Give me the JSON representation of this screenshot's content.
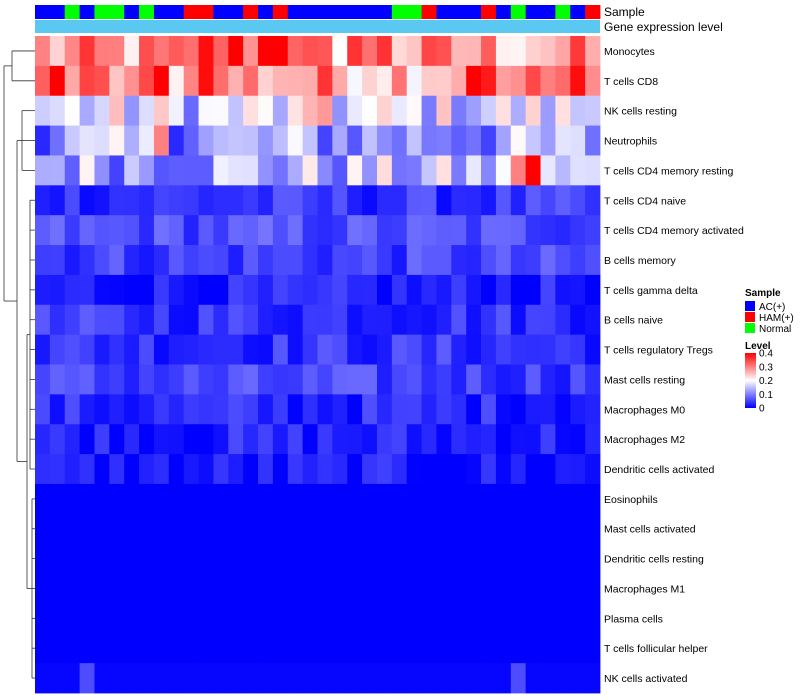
{
  "chart_data": {
    "type": "heatmap",
    "title": "",
    "annotation_labels": {
      "sample": "Sample",
      "gene_expression": "Gene expression level"
    },
    "row_labels": [
      "Monocytes",
      "T cells CD8",
      "NK cells resting",
      "Neutrophils",
      "T cells CD4 memory resting",
      "T cells CD4 naive",
      "T cells CD4 memory activated",
      "B cells memory",
      "T cells gamma delta",
      "B cells naive",
      "T cells regulatory  Tregs",
      "Mast cells resting",
      "Macrophages M0",
      "Macrophages M2",
      "Dendritic cells activated",
      "Eosinophils",
      "Mast cells activated",
      "Dendritic cells resting",
      "Macrophages M1",
      "Plasma cells",
      "T cells follicular helper",
      "NK cells activated"
    ],
    "sample_groups": [
      "A",
      "A",
      "N",
      "A",
      "N",
      "N",
      "A",
      "N",
      "A",
      "A",
      "H",
      "H",
      "A",
      "A",
      "H",
      "A",
      "H",
      "A",
      "A",
      "A",
      "A",
      "A",
      "A",
      "A",
      "N",
      "N",
      "H",
      "A",
      "A",
      "A",
      "H",
      "A",
      "N",
      "A",
      "A",
      "N",
      "A",
      "H"
    ],
    "color_scale": {
      "label": "Level",
      "min": 0,
      "max": 0.4,
      "ticks": [
        0.4,
        0.3,
        0.2,
        0.1,
        0
      ],
      "colors": [
        "#0000ff",
        "#ffffff",
        "#ff0000"
      ]
    },
    "legend": {
      "title": "Sample",
      "items": [
        {
          "key": "A",
          "label": "AC(+)",
          "color": "#0000ff"
        },
        {
          "key": "H",
          "label": "HAM(+)",
          "color": "#ff0000"
        },
        {
          "key": "N",
          "label": "Normal",
          "color": "#00ff00"
        }
      ]
    },
    "annotation_bar_color": "#5ac8f0",
    "row_base_levels": [
      0.27,
      0.28,
      0.17,
      0.12,
      0.14,
      0.04,
      0.06,
      0.05,
      0.02,
      0.04,
      0.04,
      0.05,
      0.03,
      0.025,
      0.015,
      0,
      0,
      0,
      0,
      0,
      0,
      0.005
    ],
    "notable_cells": [
      {
        "row": 0,
        "col": 13,
        "value": 0.4
      },
      {
        "row": 0,
        "col": 11,
        "value": 0.39
      },
      {
        "row": 0,
        "col": 15,
        "value": 0.4
      },
      {
        "row": 0,
        "col": 16,
        "value": 0.4
      },
      {
        "row": 0,
        "col": 21,
        "value": 0.36
      },
      {
        "row": 0,
        "col": 23,
        "value": 0.36
      },
      {
        "row": 1,
        "col": 1,
        "value": 0.4
      },
      {
        "row": 1,
        "col": 8,
        "value": 0.4
      },
      {
        "row": 1,
        "col": 11,
        "value": 0.39
      },
      {
        "row": 1,
        "col": 29,
        "value": 0.4
      },
      {
        "row": 1,
        "col": 30,
        "value": 0.38
      },
      {
        "row": 1,
        "col": 36,
        "value": 0.39
      },
      {
        "row": 4,
        "col": 33,
        "value": 0.4
      },
      {
        "row": 4,
        "col": 32,
        "value": 0.3
      },
      {
        "row": 3,
        "col": 8,
        "value": 0.3
      },
      {
        "row": 2,
        "col": 19,
        "value": 0.28
      },
      {
        "row": 21,
        "col": 3,
        "value": 0.06
      },
      {
        "row": 21,
        "col": 32,
        "value": 0.06
      }
    ]
  }
}
